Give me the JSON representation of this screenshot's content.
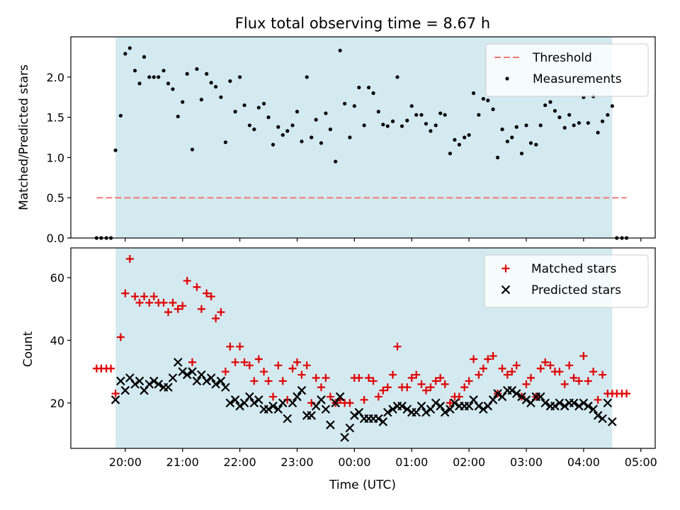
{
  "colors": {
    "observing_band": "#d3eaf0",
    "threshold": "#f07a7a",
    "measurements": "#000000",
    "matched": "#e00000",
    "predicted": "#000000"
  },
  "chart_data": [
    {
      "type": "scatter",
      "title": "Flux total observing time = 8.67 h",
      "xlabel": "",
      "ylabel": "Matched/Predicted stars",
      "x_unit": "hours since 00:00 UTC",
      "xlim": [
        -4.95,
        5.25
      ],
      "ylim": [
        0,
        2.5
      ],
      "yticks": [
        0.0,
        0.5,
        1.0,
        1.5,
        2.0
      ],
      "ytick_labels": [
        "0.0",
        "0.5",
        "1.0",
        "1.5",
        "2.0"
      ],
      "xticks": [
        -4,
        -3,
        -2,
        -1,
        0,
        1,
        2,
        3,
        4,
        5
      ],
      "grid": false,
      "legend_position": "top-right",
      "observing_band": [
        -4.17,
        4.5
      ],
      "threshold": {
        "name": "Threshold",
        "y": 0.5,
        "x_range": [
          -4.5,
          4.75
        ]
      },
      "series": [
        {
          "name": "Measurements",
          "marker": "dot",
          "x": [
            -4.5,
            -4.42,
            -4.33,
            -4.25,
            -4.17,
            -4.08,
            -4.0,
            -3.92,
            -3.83,
            -3.75,
            -3.67,
            -3.58,
            -3.5,
            -3.42,
            -3.33,
            -3.25,
            -3.17,
            -3.08,
            -3.0,
            -2.92,
            -2.83,
            -2.75,
            -2.67,
            -2.58,
            -2.5,
            -2.42,
            -2.33,
            -2.25,
            -2.17,
            -2.08,
            -2.0,
            -1.92,
            -1.83,
            -1.75,
            -1.67,
            -1.58,
            -1.5,
            -1.42,
            -1.33,
            -1.25,
            -1.17,
            -1.08,
            -1.0,
            -0.92,
            -0.83,
            -0.75,
            -0.67,
            -0.58,
            -0.5,
            -0.42,
            -0.33,
            -0.25,
            -0.17,
            -0.08,
            0.0,
            0.08,
            0.17,
            0.25,
            0.33,
            0.42,
            0.5,
            0.58,
            0.67,
            0.75,
            0.83,
            0.92,
            1.0,
            1.08,
            1.17,
            1.25,
            1.33,
            1.42,
            1.5,
            1.58,
            1.67,
            1.75,
            1.83,
            1.92,
            2.0,
            2.08,
            2.17,
            2.25,
            2.33,
            2.42,
            2.5,
            2.58,
            2.67,
            2.75,
            2.83,
            2.92,
            3.0,
            3.08,
            3.17,
            3.25,
            3.33,
            3.42,
            3.5,
            3.58,
            3.67,
            3.75,
            3.83,
            3.92,
            4.0,
            4.08,
            4.17,
            4.25,
            4.33,
            4.42,
            4.5,
            4.58,
            4.67,
            4.75
          ],
          "y": [
            0.0,
            0.0,
            0.0,
            0.0,
            1.09,
            1.52,
            2.29,
            2.36,
            2.08,
            1.92,
            2.25,
            2.0,
            2.0,
            2.0,
            2.08,
            1.92,
            1.85,
            1.51,
            1.69,
            2.04,
            1.1,
            2.1,
            1.72,
            2.04,
            1.93,
            1.88,
            1.75,
            1.19,
            1.95,
            1.57,
            2.0,
            1.65,
            1.4,
            1.35,
            1.62,
            1.67,
            1.5,
            1.16,
            1.38,
            1.28,
            1.33,
            1.4,
            1.57,
            1.2,
            2.0,
            1.25,
            1.47,
            1.18,
            1.55,
            1.35,
            0.95,
            2.33,
            1.67,
            1.25,
            1.64,
            1.87,
            1.4,
            1.87,
            1.8,
            1.57,
            1.41,
            1.39,
            1.45,
            2.0,
            1.39,
            1.46,
            1.64,
            1.53,
            1.53,
            1.42,
            1.33,
            1.4,
            1.55,
            1.53,
            1.05,
            1.22,
            1.16,
            1.25,
            1.28,
            1.8,
            1.53,
            1.73,
            1.71,
            1.6,
            1.0,
            1.35,
            1.2,
            1.25,
            1.38,
            1.05,
            1.4,
            1.18,
            1.16,
            1.4,
            1.65,
            1.69,
            1.58,
            1.5,
            1.37,
            1.53,
            1.4,
            1.43,
            1.75,
            1.43,
            1.76,
            1.31,
            1.45,
            1.53,
            1.64,
            0.0,
            0.0,
            0.0
          ]
        }
      ]
    },
    {
      "type": "scatter",
      "title": "",
      "xlabel": "Time (UTC)",
      "ylabel": "Count",
      "x_unit": "hours since 00:00 UTC",
      "xlim": [
        -4.95,
        5.25
      ],
      "ylim": [
        5.5,
        69.5
      ],
      "yticks": [
        20,
        40,
        60
      ],
      "ytick_labels": [
        "20",
        "40",
        "60"
      ],
      "xticks": [
        -4,
        -3,
        -2,
        -1,
        0,
        1,
        2,
        3,
        4,
        5
      ],
      "xtick_labels": [
        "20:00",
        "21:00",
        "22:00",
        "23:00",
        "00:00",
        "01:00",
        "02:00",
        "03:00",
        "04:00",
        "05:00"
      ],
      "grid": false,
      "legend_position": "top-right",
      "observing_band": [
        -4.17,
        4.5
      ],
      "series": [
        {
          "name": "Matched stars",
          "marker": "plus",
          "x": [
            -4.5,
            -4.42,
            -4.33,
            -4.25,
            -4.17,
            -4.08,
            -4.0,
            -3.92,
            -3.83,
            -3.75,
            -3.67,
            -3.58,
            -3.5,
            -3.42,
            -3.33,
            -3.25,
            -3.17,
            -3.08,
            -3.0,
            -2.92,
            -2.83,
            -2.75,
            -2.67,
            -2.58,
            -2.5,
            -2.42,
            -2.33,
            -2.25,
            -2.17,
            -2.08,
            -2.0,
            -1.92,
            -1.83,
            -1.75,
            -1.67,
            -1.58,
            -1.5,
            -1.42,
            -1.33,
            -1.25,
            -1.17,
            -1.08,
            -1.0,
            -0.92,
            -0.83,
            -0.75,
            -0.67,
            -0.58,
            -0.5,
            -0.42,
            -0.33,
            -0.25,
            -0.17,
            -0.08,
            0.0,
            0.08,
            0.17,
            0.25,
            0.33,
            0.42,
            0.5,
            0.58,
            0.67,
            0.75,
            0.83,
            0.92,
            1.0,
            1.08,
            1.17,
            1.25,
            1.33,
            1.42,
            1.5,
            1.58,
            1.67,
            1.75,
            1.83,
            1.92,
            2.0,
            2.08,
            2.17,
            2.25,
            2.33,
            2.42,
            2.5,
            2.58,
            2.67,
            2.75,
            2.83,
            2.92,
            3.0,
            3.08,
            3.17,
            3.25,
            3.33,
            3.42,
            3.5,
            3.58,
            3.67,
            3.75,
            3.83,
            3.92,
            4.0,
            4.08,
            4.17,
            4.25,
            4.33,
            4.42,
            4.5,
            4.58,
            4.67,
            4.75
          ],
          "y": [
            31,
            31,
            31,
            31,
            23,
            41,
            55,
            66,
            54,
            52,
            54,
            52,
            54,
            52,
            52,
            49,
            52,
            50,
            51,
            59,
            33,
            57,
            50,
            55,
            54,
            47,
            49,
            30,
            38,
            33,
            38,
            33,
            32,
            27,
            34,
            30,
            27,
            22,
            32,
            27,
            21,
            31,
            33,
            29,
            32,
            20,
            28,
            25,
            28,
            22,
            20,
            21,
            20,
            20,
            28,
            28,
            21,
            28,
            27,
            22,
            24,
            25,
            29,
            38,
            25,
            25,
            28,
            29,
            26,
            24,
            25,
            27,
            28,
            26,
            20,
            22,
            22,
            25,
            27,
            34,
            29,
            31,
            34,
            35,
            23,
            31,
            29,
            30,
            32,
            22,
            26,
            28,
            22,
            31,
            33,
            32,
            30,
            30,
            26,
            32,
            28,
            27,
            35,
            27,
            30,
            21,
            29,
            23,
            23,
            23,
            23,
            23
          ]
        },
        {
          "name": "Predicted stars",
          "marker": "x",
          "x": [
            -4.17,
            -4.08,
            -4.0,
            -3.92,
            -3.83,
            -3.75,
            -3.67,
            -3.58,
            -3.5,
            -3.42,
            -3.33,
            -3.25,
            -3.17,
            -3.08,
            -3.0,
            -2.92,
            -2.83,
            -2.75,
            -2.67,
            -2.58,
            -2.5,
            -2.42,
            -2.33,
            -2.25,
            -2.17,
            -2.08,
            -2.0,
            -1.92,
            -1.83,
            -1.75,
            -1.67,
            -1.58,
            -1.5,
            -1.42,
            -1.33,
            -1.25,
            -1.17,
            -1.08,
            -1.0,
            -0.92,
            -0.83,
            -0.75,
            -0.67,
            -0.58,
            -0.5,
            -0.42,
            -0.33,
            -0.25,
            -0.17,
            -0.08,
            0.0,
            0.08,
            0.17,
            0.25,
            0.33,
            0.42,
            0.5,
            0.58,
            0.67,
            0.75,
            0.83,
            0.92,
            1.0,
            1.08,
            1.17,
            1.25,
            1.33,
            1.42,
            1.5,
            1.58,
            1.67,
            1.75,
            1.83,
            1.92,
            2.0,
            2.08,
            2.17,
            2.25,
            2.33,
            2.42,
            2.5,
            2.58,
            2.67,
            2.75,
            2.83,
            2.92,
            3.0,
            3.08,
            3.17,
            3.25,
            3.33,
            3.42,
            3.5,
            3.58,
            3.67,
            3.75,
            3.83,
            3.92,
            4.0,
            4.08,
            4.17,
            4.25,
            4.33,
            4.42,
            4.5
          ],
          "y": [
            21,
            27,
            24,
            28,
            26,
            27,
            24,
            26,
            27,
            26,
            25,
            25,
            28,
            33,
            30,
            29,
            30,
            27,
            29,
            27,
            28,
            26,
            27,
            25,
            20,
            21,
            19,
            20,
            22,
            20,
            21,
            18,
            18,
            19,
            18,
            20,
            15,
            20,
            22,
            24,
            16,
            16,
            19,
            21,
            18,
            13,
            20,
            22,
            9,
            12,
            16,
            17,
            15,
            15,
            15,
            15,
            14,
            17,
            18,
            19,
            19,
            18,
            17,
            17,
            19,
            17,
            18,
            20,
            19,
            17,
            18,
            20,
            19,
            19,
            19,
            21,
            19,
            18,
            19,
            21,
            23,
            22,
            24,
            24,
            23,
            22,
            21,
            20,
            22,
            22,
            20,
            19,
            19,
            20,
            19,
            20,
            20,
            19,
            20,
            19,
            18,
            16,
            15,
            20,
            14
          ]
        }
      ]
    }
  ]
}
